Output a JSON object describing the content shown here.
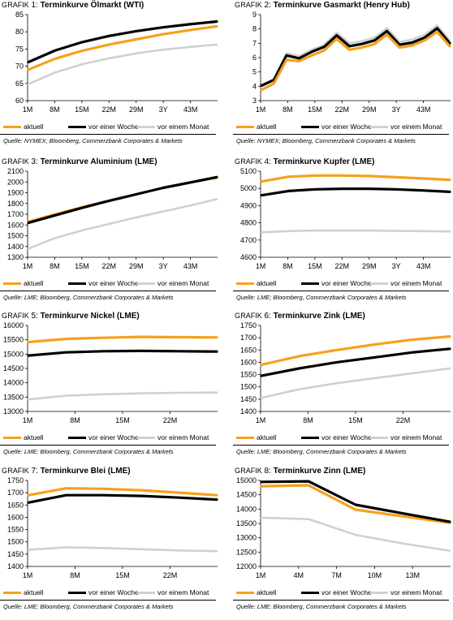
{
  "colors": {
    "aktuell": "#f7a01c",
    "woche": "#000000",
    "monat": "#d0d0d0"
  },
  "legend": {
    "aktuell": "aktuell",
    "woche": "vor einer Woche",
    "monat": "vor einem Monat"
  },
  "chart_data": [
    {
      "type": "line",
      "title_prefix_first": "G",
      "title_prefix_rest": "RAFIK",
      "title_number": "1:",
      "title": "Terminkurve Ölmarkt (WTI)",
      "x_ticks": [
        "1M",
        "8M",
        "15M",
        "22M",
        "29M",
        "3Y",
        "43M"
      ],
      "ylim": [
        60,
        85
      ],
      "y_ticks": [
        60,
        65,
        70,
        75,
        80,
        85
      ],
      "series": [
        {
          "key": "aktuell",
          "name": "aktuell",
          "values": [
            69,
            72.2,
            74.5,
            76.3,
            77.8,
            79.3,
            80.5,
            81.6
          ]
        },
        {
          "key": "woche",
          "name": "vor einer Woche",
          "values": [
            71.2,
            74.6,
            77,
            78.8,
            80.2,
            81.3,
            82.2,
            83
          ]
        },
        {
          "key": "monat",
          "name": "vor einem Monat",
          "values": [
            64.8,
            68.2,
            70.6,
            72.3,
            73.7,
            74.8,
            75.6,
            76.3
          ]
        }
      ],
      "source": "Quelle: NYMEX; Bloomberg, Commerzbank Corporates & Markets"
    },
    {
      "type": "line",
      "title_prefix_first": "G",
      "title_prefix_rest": "RAFIK",
      "title_number": "2:",
      "title": "Terminkurve Gasmarkt (Henry Hub)",
      "x_ticks": [
        "1M",
        "8M",
        "15M",
        "22M",
        "29M",
        "3Y",
        "43M"
      ],
      "ylim": [
        3,
        9
      ],
      "y_ticks": [
        3,
        4,
        5,
        6,
        7,
        8,
        9
      ],
      "series": [
        {
          "key": "monat",
          "name": "vor einem Monat",
          "values": [
            4.0,
            4.5,
            6.3,
            6.1,
            6.55,
            6.9,
            7.75,
            7.0,
            7.15,
            7.4,
            8.05,
            7.1,
            7.25,
            7.6,
            8.25,
            7.2
          ]
        },
        {
          "key": "woche",
          "name": "vor einer Woche",
          "values": [
            4.05,
            4.45,
            6.15,
            5.95,
            6.4,
            6.75,
            7.55,
            6.8,
            6.95,
            7.2,
            7.85,
            6.9,
            7.05,
            7.4,
            8.05,
            7.0
          ]
        },
        {
          "key": "aktuell",
          "name": "aktuell",
          "values": [
            3.75,
            4.2,
            5.85,
            5.75,
            6.15,
            6.5,
            7.3,
            6.55,
            6.7,
            6.95,
            7.6,
            6.7,
            6.85,
            7.2,
            7.8,
            6.8
          ]
        }
      ],
      "source": "Quelle: NYMEX; Bloomberg, Commerzbank Corporates & Markets"
    },
    {
      "type": "line",
      "title_prefix_first": "G",
      "title_prefix_rest": "RAFIK",
      "title_number": "3:",
      "title": "Terminkurve Aluminium (LME)",
      "x_ticks": [
        "1M",
        "8M",
        "15M",
        "22M",
        "29M",
        "3Y",
        "43M"
      ],
      "ylim": [
        1300,
        2100
      ],
      "y_ticks": [
        1300,
        1400,
        1500,
        1600,
        1700,
        1800,
        1900,
        2000,
        2100
      ],
      "series": [
        {
          "key": "monat",
          "name": "vor einem Monat",
          "values": [
            1380,
            1480,
            1550,
            1610,
            1670,
            1725,
            1780,
            1840
          ]
        },
        {
          "key": "aktuell",
          "name": "aktuell",
          "values": [
            1630,
            1700,
            1765,
            1825,
            1885,
            1945,
            1995,
            2040
          ]
        },
        {
          "key": "woche",
          "name": "vor einer Woche",
          "values": [
            1620,
            1690,
            1760,
            1825,
            1885,
            1945,
            1995,
            2045
          ]
        }
      ],
      "source": "Quelle: LME; Bloomberg, Commerzbank Corporates & Markets"
    },
    {
      "type": "line",
      "title_prefix_first": "G",
      "title_prefix_rest": "RAFIK",
      "title_number": "4:",
      "title": "Terminkurve Kupfer (LME)",
      "x_ticks": [
        "1M",
        "8M",
        "15M",
        "22M",
        "29M",
        "3Y",
        "43M"
      ],
      "ylim": [
        4600,
        5100
      ],
      "y_ticks": [
        4600,
        4700,
        4800,
        4900,
        5000,
        5100
      ],
      "series": [
        {
          "key": "monat",
          "name": "vor einem Monat",
          "values": [
            4745,
            4752,
            4755,
            4755,
            4755,
            4753,
            4752,
            4750
          ]
        },
        {
          "key": "woche",
          "name": "vor einer Woche",
          "values": [
            4960,
            4985,
            4995,
            4998,
            4998,
            4995,
            4988,
            4980
          ]
        },
        {
          "key": "aktuell",
          "name": "aktuell",
          "values": [
            5040,
            5068,
            5075,
            5075,
            5072,
            5065,
            5058,
            5050
          ]
        }
      ],
      "source": "Quelle: LME; Bloomberg, Commerzbank Corporates & Markets"
    },
    {
      "type": "line",
      "title_prefix_first": "G",
      "title_prefix_rest": "RAFIK",
      "title_number": "5:",
      "title": "Terminkurve Nickel (LME)",
      "x_ticks": [
        "1M",
        "8M",
        "15M",
        "22M"
      ],
      "ylim": [
        13000,
        16000
      ],
      "y_ticks": [
        13000,
        13500,
        14000,
        14500,
        15000,
        15500,
        16000
      ],
      "series": [
        {
          "key": "monat",
          "name": "vor einem Monat",
          "values": [
            13420,
            13550,
            13600,
            13630,
            13650,
            13660
          ]
        },
        {
          "key": "woche",
          "name": "vor einer Woche",
          "values": [
            14950,
            15060,
            15100,
            15110,
            15100,
            15090
          ]
        },
        {
          "key": "aktuell",
          "name": "aktuell",
          "values": [
            15420,
            15530,
            15570,
            15600,
            15590,
            15580
          ]
        }
      ],
      "source": "Quelle: LME; Bloomberg, Commerzbank Corporates & Markets"
    },
    {
      "type": "line",
      "title_prefix_first": "G",
      "title_prefix_rest": "RAFIK",
      "title_number": "6:",
      "title": "Terminkurve Zink (LME)",
      "x_ticks": [
        "1M",
        "8M",
        "15M",
        "22M"
      ],
      "ylim": [
        1400,
        1750
      ],
      "y_ticks": [
        1400,
        1450,
        1500,
        1550,
        1600,
        1650,
        1700,
        1750
      ],
      "series": [
        {
          "key": "monat",
          "name": "vor einem Monat",
          "values": [
            1455,
            1490,
            1515,
            1535,
            1555,
            1575
          ]
        },
        {
          "key": "woche",
          "name": "vor einer Woche",
          "values": [
            1545,
            1575,
            1600,
            1620,
            1640,
            1655
          ]
        },
        {
          "key": "aktuell",
          "name": "aktuell",
          "values": [
            1590,
            1625,
            1650,
            1672,
            1692,
            1705
          ]
        }
      ],
      "source": "Quelle: LME; Bloomberg, Commerzbank Corporates & Markets"
    },
    {
      "type": "line",
      "title_prefix_first": "G",
      "title_prefix_rest": "RAFIK",
      "title_number": "7:",
      "title": "Terminkurve Blei (LME)",
      "x_ticks": [
        "1M",
        "8M",
        "15M",
        "22M"
      ],
      "ylim": [
        1400,
        1750
      ],
      "y_ticks": [
        1400,
        1450,
        1500,
        1550,
        1600,
        1650,
        1700,
        1750
      ],
      "series": [
        {
          "key": "monat",
          "name": "vor einem Monat",
          "values": [
            1468,
            1478,
            1475,
            1470,
            1465,
            1462
          ]
        },
        {
          "key": "woche",
          "name": "vor einer Woche",
          "values": [
            1660,
            1690,
            1690,
            1687,
            1680,
            1672
          ]
        },
        {
          "key": "aktuell",
          "name": "aktuell",
          "values": [
            1690,
            1718,
            1716,
            1710,
            1700,
            1690
          ]
        }
      ],
      "source": "Quelle: LME; Bloomberg, Commerzbank Corporates & Markets"
    },
    {
      "type": "line",
      "title_prefix_first": "G",
      "title_prefix_rest": "RAFIK",
      "title_number": "8:",
      "title": "Terminkurve Zinn (LME)",
      "x_ticks": [
        "1M",
        "4M",
        "7M",
        "10M",
        "13M"
      ],
      "ylim": [
        12000,
        15000
      ],
      "y_ticks": [
        12000,
        12500,
        13000,
        13500,
        14000,
        14500,
        15000
      ],
      "series": [
        {
          "key": "monat",
          "name": "vor einem Monat",
          "values": [
            13700,
            13650,
            13100,
            12800,
            12550
          ]
        },
        {
          "key": "aktuell",
          "name": "aktuell",
          "values": [
            14800,
            14830,
            13980,
            13750,
            13520
          ]
        },
        {
          "key": "woche",
          "name": "vor einer Woche",
          "values": [
            14950,
            14970,
            14150,
            13850,
            13560
          ]
        }
      ],
      "source": "Quelle: LME; Bloomberg, Commerzbank Corporates & Markets"
    }
  ]
}
